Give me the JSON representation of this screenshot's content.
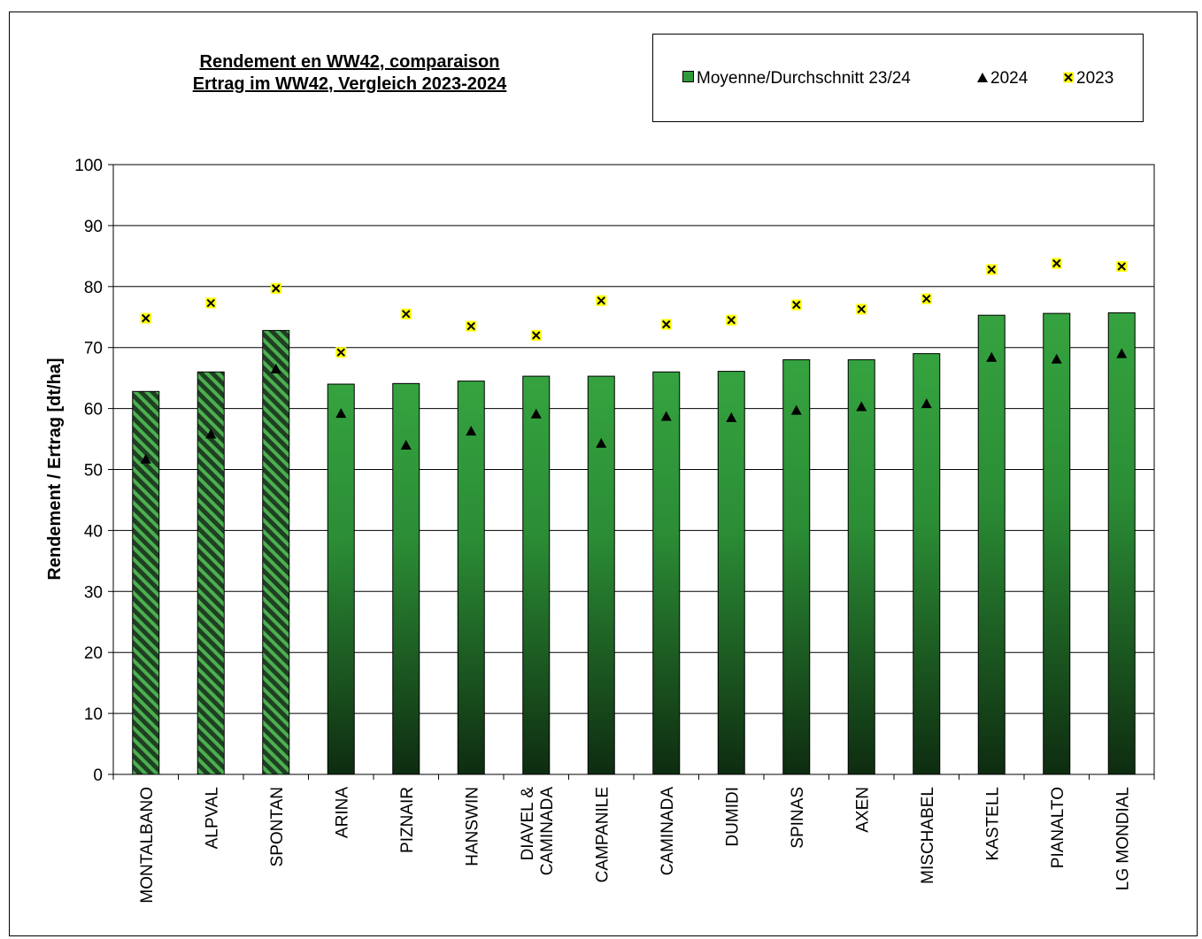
{
  "chart_data": {
    "type": "bar",
    "title_lines": [
      "Rendement  en WW42, comparaison",
      "Ertrag im WW42, Vergleich 2023-2024"
    ],
    "ylabel": "Rendement / Ertrag [dt/ha]",
    "xlabel": "",
    "ylim": [
      0,
      100
    ],
    "yticks": [
      0,
      10,
      20,
      30,
      40,
      50,
      60,
      70,
      80,
      90,
      100
    ],
    "grid": true,
    "legend_position": "top-right",
    "categories": [
      "MONTALBANO",
      "ALPVAL",
      "SPONTAN",
      "ARINA",
      "PIZNAIR",
      "HANSWIN",
      "DIAVEL & CAMINADA",
      "CAMPANILE",
      "CAMINADA",
      "DUMIDI",
      "SPINAS",
      "AXEN",
      "MISCHABEL",
      "KASTELL",
      "PIANALTO",
      "LG MONDIAL"
    ],
    "category_lines": [
      [
        "MONTALBANO"
      ],
      [
        "ALPVAL"
      ],
      [
        "SPONTAN"
      ],
      [
        "ARINA"
      ],
      [
        "PIZNAIR"
      ],
      [
        "HANSWIN"
      ],
      [
        "DIAVEL &",
        "CAMINADA"
      ],
      [
        "CAMPANILE"
      ],
      [
        "CAMINADA"
      ],
      [
        "DUMIDI"
      ],
      [
        "SPINAS"
      ],
      [
        "AXEN"
      ],
      [
        "MISCHABEL"
      ],
      [
        "KASTELL"
      ],
      [
        "PIANALTO"
      ],
      [
        "LG MONDIAL"
      ]
    ],
    "hatched_bars": [
      true,
      true,
      true,
      false,
      false,
      false,
      false,
      false,
      false,
      false,
      false,
      false,
      false,
      false,
      false,
      false
    ],
    "series": [
      {
        "name": "Moyenne/Durchschnitt 23/24",
        "kind": "bar",
        "color": "#2f9a3a",
        "values": [
          62.8,
          66.0,
          72.8,
          64.0,
          64.1,
          64.5,
          65.3,
          65.3,
          66.0,
          66.1,
          68.0,
          68.0,
          69.0,
          75.3,
          75.6,
          75.7
        ]
      },
      {
        "name": "2024",
        "kind": "triangle-marker",
        "color": "#000000",
        "values": [
          51.7,
          55.8,
          66.5,
          59.2,
          54.0,
          56.3,
          59.1,
          54.3,
          58.7,
          58.5,
          59.7,
          60.3,
          60.8,
          68.4,
          68.1,
          69.0
        ]
      },
      {
        "name": "2023",
        "kind": "x-marker",
        "color": "#ffff00",
        "values": [
          74.8,
          77.3,
          79.7,
          69.2,
          75.5,
          73.5,
          72.0,
          77.7,
          73.8,
          74.5,
          77.0,
          76.3,
          78.0,
          82.8,
          83.8,
          83.3
        ]
      }
    ]
  }
}
